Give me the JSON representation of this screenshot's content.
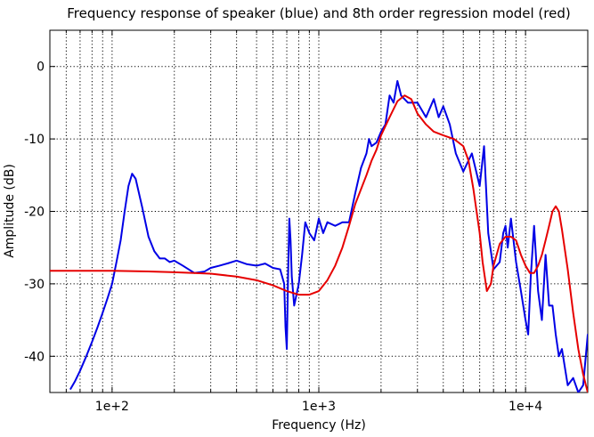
{
  "chart_data": {
    "type": "line",
    "title": "Frequency response of speaker (blue) and 8th order regression model (red)",
    "xlabel": "Frequency (Hz)",
    "ylabel": "Amplitude (dB)",
    "xscale": "log",
    "xlim": [
      50,
      20000
    ],
    "ylim": [
      -45,
      5
    ],
    "grid": true,
    "x_ticks": [
      100,
      1000,
      10000
    ],
    "x_tick_labels": [
      "1e+2",
      "1e+3",
      "1e+4"
    ],
    "y_ticks": [
      0,
      -10,
      -20,
      -30,
      -40
    ],
    "y_tick_labels": [
      "0",
      "-10",
      "-20",
      "-30",
      "-40"
    ],
    "series": [
      {
        "color": "#0000e6",
        "x": [
          63,
          66,
          70,
          75,
          80,
          85,
          90,
          95,
          100,
          105,
          110,
          115,
          120,
          125,
          130,
          140,
          150,
          160,
          170,
          180,
          190,
          200,
          220,
          250,
          280,
          300,
          330,
          360,
          400,
          450,
          500,
          550,
          600,
          650,
          680,
          690,
          700,
          710,
          720,
          730,
          740,
          760,
          800,
          830,
          860,
          900,
          950,
          1000,
          1050,
          1100,
          1200,
          1300,
          1400,
          1500,
          1600,
          1700,
          1750,
          1800,
          1900,
          2000,
          2100,
          2200,
          2300,
          2400,
          2500,
          2700,
          3000,
          3300,
          3600,
          3800,
          4000,
          4300,
          4600,
          5000,
          5500,
          6000,
          6300,
          6600,
          7000,
          7500,
          7800,
          8000,
          8200,
          8500,
          9000,
          9500,
          10000,
          10300,
          10600,
          11000,
          11500,
          12000,
          12500,
          13000,
          13500,
          14000,
          14500,
          15000,
          16000,
          17000,
          18000,
          19000,
          20000
        ],
        "y": [
          -44.5,
          -43.5,
          -42,
          -40,
          -38,
          -36,
          -34,
          -32,
          -30,
          -27,
          -24,
          -20,
          -16.5,
          -14.8,
          -15.5,
          -19.5,
          -23.5,
          -25.5,
          -26.5,
          -26.5,
          -27,
          -26.8,
          -27.5,
          -28.5,
          -28.3,
          -27.8,
          -27.5,
          -27.2,
          -26.8,
          -27.3,
          -27.5,
          -27.2,
          -27.8,
          -28,
          -30,
          -36,
          -39,
          -29,
          -21,
          -24,
          -29,
          -33,
          -30,
          -26,
          -21.5,
          -23,
          -24,
          -21,
          -23,
          -21.5,
          -22,
          -21.5,
          -21.5,
          -17.5,
          -14,
          -12,
          -10,
          -11,
          -10.5,
          -9,
          -8,
          -4,
          -5,
          -2,
          -4,
          -5,
          -5,
          -7,
          -4.5,
          -7,
          -5.5,
          -8,
          -12,
          -14.5,
          -12,
          -16.5,
          -11,
          -23,
          -28,
          -27,
          -23,
          -22,
          -25,
          -21,
          -27,
          -31,
          -35,
          -37,
          -29,
          -22,
          -31,
          -35,
          -26,
          -33,
          -33,
          -37,
          -40,
          -39,
          -44,
          -43,
          -45,
          -44,
          -37
        ]
      },
      {
        "color": "#e60000",
        "x": [
          50,
          70,
          100,
          150,
          200,
          300,
          400,
          500,
          600,
          700,
          800,
          900,
          1000,
          1100,
          1200,
          1300,
          1400,
          1500,
          1700,
          1800,
          1900,
          2000,
          2200,
          2400,
          2600,
          2800,
          3000,
          3300,
          3600,
          4000,
          4500,
          5000,
          5300,
          5600,
          6000,
          6200,
          6500,
          6800,
          7000,
          7500,
          8000,
          8500,
          9000,
          9500,
          10000,
          10500,
          11000,
          11500,
          12000,
          12500,
          13000,
          13500,
          14000,
          14500,
          15000,
          16000,
          17000,
          18000,
          19000,
          20000
        ],
        "y": [
          -28.2,
          -28.2,
          -28.2,
          -28.3,
          -28.4,
          -28.6,
          -29.0,
          -29.5,
          -30.2,
          -31.0,
          -31.5,
          -31.5,
          -31.0,
          -29.5,
          -27.5,
          -25,
          -22,
          -19,
          -15,
          -13,
          -11.5,
          -9.5,
          -7,
          -4.8,
          -4,
          -4.5,
          -6.5,
          -8,
          -9,
          -9.5,
          -10,
          -11,
          -13,
          -17,
          -23,
          -27,
          -31,
          -30,
          -27.5,
          -24.5,
          -23.5,
          -23.5,
          -24,
          -26,
          -27.5,
          -28.5,
          -28.5,
          -27.5,
          -26,
          -24,
          -22,
          -20,
          -19.3,
          -20,
          -22.5,
          -28,
          -34,
          -39,
          -42.5,
          -45
        ]
      }
    ]
  }
}
